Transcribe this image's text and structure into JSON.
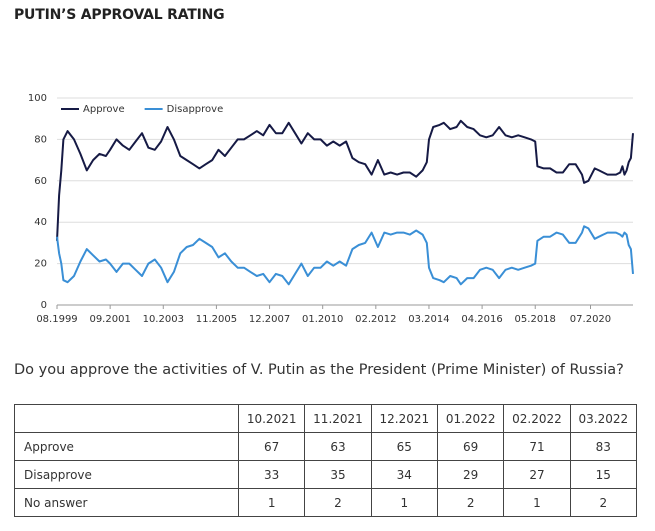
{
  "chart_data": {
    "type": "line",
    "title": "PUTIN’S APPROVAL RATING",
    "x": [
      "08.1999",
      "09.1999",
      "10.1999",
      "11.1999",
      "01.2000",
      "04.2000",
      "07.2000",
      "10.2000",
      "01.2001",
      "04.2001",
      "07.2001",
      "09.2001",
      "12.2001",
      "03.2002",
      "06.2002",
      "09.2002",
      "12.2002",
      "03.2003",
      "06.2003",
      "09.2003",
      "12.2003",
      "03.2004",
      "06.2004",
      "09.2004",
      "12.2004",
      "03.2005",
      "06.2005",
      "09.2005",
      "12.2005",
      "03.2006",
      "06.2006",
      "09.2006",
      "12.2006",
      "03.2007",
      "06.2007",
      "09.2007",
      "12.2007",
      "03.2008",
      "06.2008",
      "09.2008",
      "12.2008",
      "03.2009",
      "06.2009",
      "09.2009",
      "12.2009",
      "03.2010",
      "06.2010",
      "09.2010",
      "12.2010",
      "03.2011",
      "06.2011",
      "09.2011",
      "12.2011",
      "03.2012",
      "06.2012",
      "09.2012",
      "12.2012",
      "03.2013",
      "06.2013",
      "09.2013",
      "12.2013",
      "02.2014",
      "03.2014",
      "05.2014",
      "08.2014",
      "10.2014",
      "01.2015",
      "04.2015",
      "06.2015",
      "09.2015",
      "12.2015",
      "03.2016",
      "06.2016",
      "09.2016",
      "12.2016",
      "03.2017",
      "06.2017",
      "09.2017",
      "12.2017",
      "03.2018",
      "05.2018",
      "06.2018",
      "09.2018",
      "12.2018",
      "03.2019",
      "06.2019",
      "09.2019",
      "12.2019",
      "03.2020",
      "04.2020",
      "06.2020",
      "09.2020",
      "11.2020",
      "01.2021",
      "03.2021",
      "05.2021",
      "07.2021",
      "09.2021",
      "10.2021",
      "11.2021",
      "12.2021",
      "01.2022",
      "02.2022",
      "03.2022"
    ],
    "series": [
      {
        "name": "Approve",
        "color": "#161a45",
        "values": [
          31,
          53,
          65,
          80,
          84,
          80,
          73,
          65,
          70,
          73,
          72,
          75,
          80,
          77,
          75,
          79,
          83,
          76,
          75,
          79,
          86,
          80,
          72,
          70,
          68,
          66,
          68,
          70,
          75,
          72,
          76,
          80,
          80,
          82,
          84,
          82,
          87,
          83,
          83,
          88,
          83,
          78,
          83,
          80,
          80,
          77,
          79,
          77,
          79,
          71,
          69,
          68,
          63,
          70,
          63,
          64,
          63,
          64,
          64,
          62,
          65,
          69,
          80,
          86,
          87,
          88,
          85,
          86,
          89,
          86,
          85,
          82,
          81,
          82,
          86,
          82,
          81,
          82,
          81,
          80,
          79,
          67,
          66,
          66,
          64,
          64,
          68,
          68,
          63,
          59,
          60,
          66,
          65,
          64,
          63,
          63,
          63,
          64,
          67,
          63,
          65,
          69,
          71,
          83
        ]
      },
      {
        "name": "Disapprove",
        "color": "#3a8fd6",
        "values": [
          33,
          25,
          20,
          12,
          11,
          14,
          21,
          27,
          24,
          21,
          22,
          20,
          16,
          20,
          20,
          17,
          14,
          20,
          22,
          18,
          11,
          16,
          25,
          28,
          29,
          32,
          30,
          28,
          23,
          25,
          21,
          18,
          18,
          16,
          14,
          15,
          11,
          15,
          14,
          10,
          15,
          20,
          14,
          18,
          18,
          21,
          19,
          21,
          19,
          27,
          29,
          30,
          35,
          28,
          35,
          34,
          35,
          35,
          34,
          36,
          34,
          30,
          18,
          13,
          12,
          11,
          14,
          13,
          10,
          13,
          13,
          17,
          18,
          17,
          13,
          17,
          18,
          17,
          18,
          19,
          20,
          31,
          33,
          33,
          35,
          34,
          30,
          30,
          35,
          38,
          37,
          32,
          33,
          34,
          35,
          35,
          35,
          34,
          33,
          35,
          34,
          29,
          27,
          15
        ]
      }
    ],
    "xlim": [
      "08.1999",
      "03.2022"
    ],
    "xticks": [
      "08.1999",
      "09.2001",
      "10.2003",
      "11.2005",
      "12.2007",
      "01.2010",
      "02.2012",
      "03.2014",
      "04.2016",
      "05.2018",
      "07.2020"
    ],
    "ylim": [
      0,
      100
    ],
    "yticks": [
      0,
      20,
      40,
      60,
      80,
      100
    ],
    "grid": true,
    "legend": "top-left"
  },
  "question": "Do you approve the activities of V. Putin as the President (Prime Minister) of Russia?",
  "table": {
    "columns": [
      "10.2021",
      "11.2021",
      "12.2021",
      "01.2022",
      "02.2022",
      "03.2022"
    ],
    "rows": [
      {
        "label": "Approve",
        "values": [
          67,
          63,
          65,
          69,
          71,
          83
        ]
      },
      {
        "label": "Disapprove",
        "values": [
          33,
          35,
          34,
          29,
          27,
          15
        ]
      },
      {
        "label": "No answer",
        "values": [
          1,
          2,
          1,
          2,
          1,
          2
        ]
      }
    ]
  }
}
